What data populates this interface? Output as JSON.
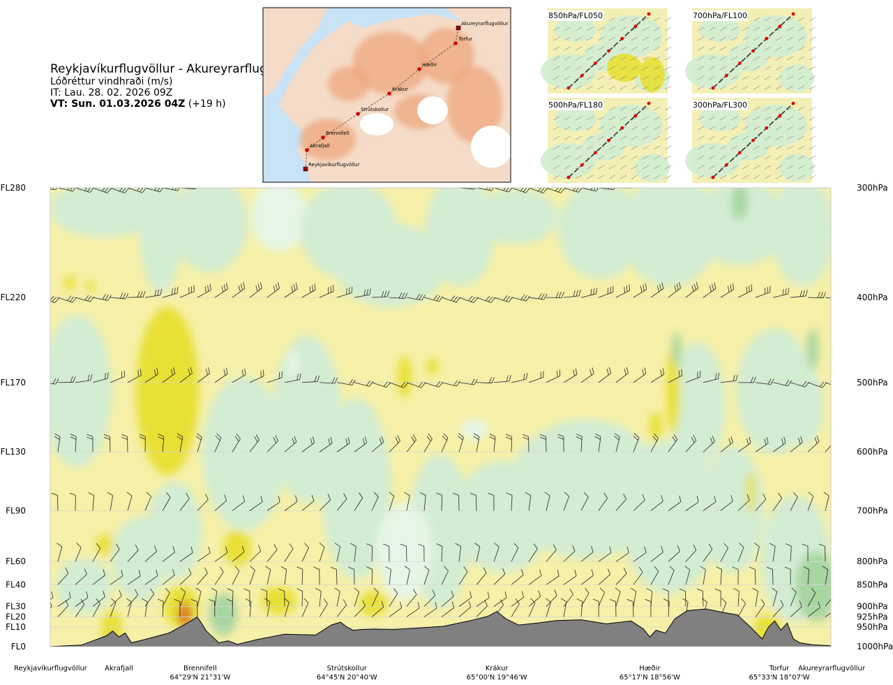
{
  "header": {
    "title": "Reykjavíkurflugvöllur - Akureyrarflugvöllur",
    "subtitle": "Lóðréttur vindhraði (m/s)",
    "issue_time": "IT: Lau. 28. 02. 2026 09Z",
    "valid_time": "VT: Sun. 01.03.2026 04Z",
    "lead": "(+19 h)"
  },
  "map": {
    "route_points": [
      {
        "name": "Akureyrarflugvöllur",
        "marker": "airport"
      },
      {
        "name": "Torfur",
        "marker": "dot"
      },
      {
        "name": "Hæðir",
        "marker": "dot"
      },
      {
        "name": "Krákur",
        "marker": "dot"
      },
      {
        "name": "Strútskollur",
        "marker": "dot"
      },
      {
        "name": "Brennifell",
        "marker": "dot"
      },
      {
        "name": "Akrafjall",
        "marker": "dot"
      },
      {
        "name": "Reykjavíkurflugvöllur",
        "marker": "airport"
      }
    ],
    "colors": {
      "sea": "#c8e2f6",
      "land": "#f5dcc8",
      "high": "#eea77f",
      "ice": "#ffffff",
      "route": "#cc0000"
    }
  },
  "level_maps": [
    {
      "label": "850hPa/FL050"
    },
    {
      "label": "700hPa/FL100"
    },
    {
      "label": "500hPa/FL180"
    },
    {
      "label": "300hPa/FL300"
    }
  ],
  "chart_data": {
    "type": "heatmap",
    "description_field": "vertical wind speed (m/s) along the route",
    "y_axis_left": [
      "FL280",
      "FL220",
      "FL170",
      "FL130",
      "FL90",
      "FL60",
      "FL40",
      "FL30",
      "FL20",
      "FL10",
      "FL0"
    ],
    "y_axis_right": [
      "300hPa",
      "400hPa",
      "500hPa",
      "600hPa",
      "700hPa",
      "800hPa",
      "850hPa",
      "900hPa",
      "925hPa",
      "950hPa",
      "1000hPa"
    ],
    "pressure_levels_hpa": [
      300,
      400,
      500,
      600,
      700,
      800,
      850,
      900,
      925,
      950,
      1000
    ],
    "ylim_hpa": [
      1000,
      300
    ],
    "x_range_km": [
      0,
      250
    ],
    "waypoints": [
      {
        "name": "Reykjavíkurflugvöllur",
        "coord": "",
        "km": 0
      },
      {
        "name": "Akrafjall",
        "coord": "",
        "km": 22
      },
      {
        "name": "Brennifell",
        "coord": "64°29'N 21°31'W",
        "km": 48
      },
      {
        "name": "Strútskollur",
        "coord": "64°45'N 20°40'W",
        "km": 95
      },
      {
        "name": "Krákur",
        "coord": "65°00'N 19°46'W",
        "km": 143
      },
      {
        "name": "Hæðir",
        "coord": "65°17'N 18°56'W",
        "km": 192
      },
      {
        "name": "Torfur",
        "coord": "65°33'N 18°07'W",
        "km": 234
      },
      {
        "name": "Akureyrarflugvöllur",
        "coord": "",
        "km": 250
      }
    ],
    "terrain_x_km": [
      0,
      10,
      18,
      20,
      22,
      24,
      26,
      30,
      38,
      42,
      45,
      47,
      48,
      50,
      54,
      57,
      60,
      66,
      75,
      85,
      90,
      93,
      95,
      97,
      100,
      104,
      110,
      118,
      126,
      134,
      140,
      143,
      146,
      150,
      156,
      162,
      170,
      178,
      186,
      190,
      192,
      194,
      197,
      200,
      204,
      210,
      216,
      220,
      224,
      228,
      230,
      232,
      234,
      236,
      238,
      240,
      244,
      250
    ],
    "terrain_hpa": [
      1000,
      996,
      972,
      960,
      975,
      965,
      990,
      982,
      965,
      948,
      935,
      925,
      935,
      960,
      990,
      985,
      994,
      982,
      968,
      970,
      945,
      938,
      950,
      958,
      956,
      955,
      956,
      952,
      948,
      935,
      924,
      912,
      930,
      945,
      940,
      934,
      932,
      942,
      935,
      955,
      975,
      958,
      965,
      930,
      910,
      906,
      915,
      920,
      948,
      980,
      950,
      935,
      958,
      940,
      980,
      990,
      995,
      998
    ],
    "terrain_color": "#808080",
    "legend_colors": {
      "strong_down": "#a7d6a0",
      "down": "#d3edd3",
      "weak_down": "#e6f6e6",
      "neutral": "#ffffff",
      "weak_up": "#fffad2",
      "up": "#f6f0a8",
      "strong_up": "#e8e036",
      "very_strong_up": "#d97b25"
    },
    "grid": true
  }
}
